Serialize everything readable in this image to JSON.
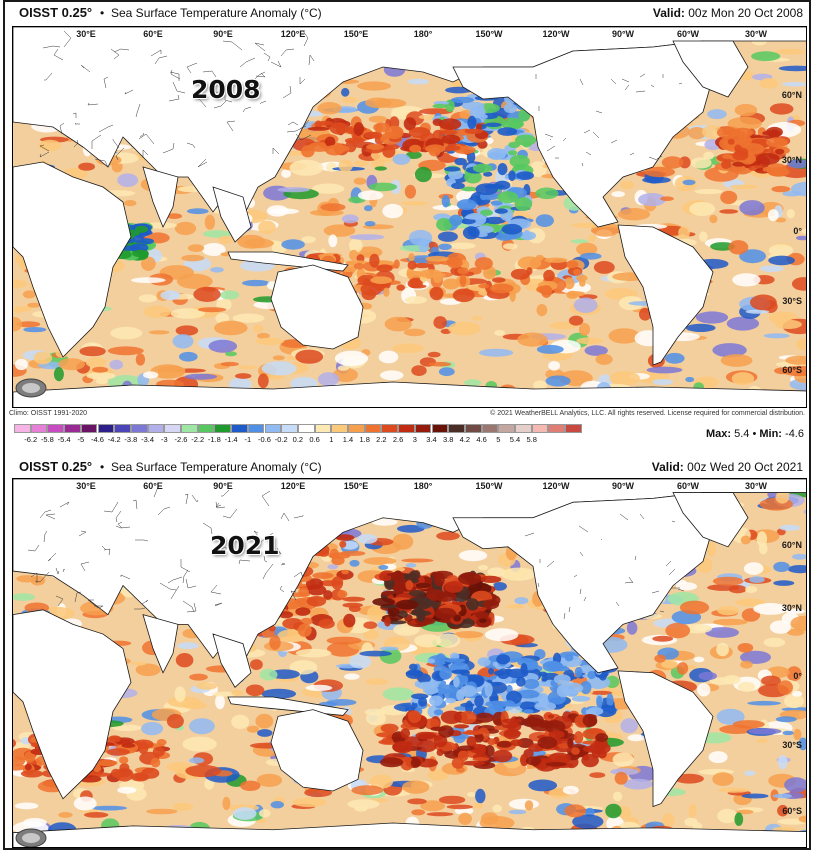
{
  "colors": {
    "scale": [
      "#f6b3e6",
      "#e680d6",
      "#c74cbf",
      "#9a2a93",
      "#6b1466",
      "#2d1f8a",
      "#4b45b8",
      "#7b78d6",
      "#b2b0ea",
      "#d8d6f5",
      "#9ee6a3",
      "#56c85f",
      "#1f9a2c",
      "#1e5bc8",
      "#4f8fe6",
      "#8fbaf2",
      "#c6dcf9",
      "#ffffff",
      "#fde9b3",
      "#fbc97a",
      "#f6a04d",
      "#ee7330",
      "#dd4a1e",
      "#c12b12",
      "#951c0c",
      "#6a1208",
      "#4a2d26",
      "#6f4b44",
      "#9a7770",
      "#c4a7a1",
      "#e6cfca",
      "#f5b9b2",
      "#e07d74",
      "#c9483f"
    ],
    "land": "#ffffff",
    "coast": "#1a1a1a"
  },
  "maps": [
    {
      "product": "OISST 0.25°",
      "bullet": "•",
      "title": "Sea Surface Temperature Anomaly (°C)",
      "valid_label": "Valid:",
      "valid_value": "00z Mon 20 Oct 2008",
      "year": "2008",
      "logo_text": "WeatherBELL",
      "climo": "Climo: OISST 1991-2020",
      "copyright": "© 2021 WeatherBELL Analytics, LLC. All rights reserved. License required for commercial distribution.",
      "max_label": "Max:",
      "max": "5.4",
      "min_label": "Min:",
      "min": "-4.6"
    },
    {
      "product": "OISST 0.25°",
      "bullet": "•",
      "title": "Sea Surface Temperature Anomaly (°C)",
      "valid_label": "Valid:",
      "valid_value": "00z Wed 20 Oct 2021",
      "year": "2021",
      "logo_text": "WeatherBELL"
    }
  ],
  "lon_labels": [
    "30°E",
    "60°E",
    "90°E",
    "120°E",
    "150°E",
    "180°",
    "150°W",
    "120°W",
    "90°W",
    "60°W",
    "30°W"
  ],
  "lat_labels": [
    "60°N",
    "30°N",
    "0°",
    "30°S",
    "60°S"
  ],
  "legend_ticks": [
    "-6.2",
    "-5.8",
    "-5.4",
    "-5",
    "-4.6",
    "-4.2",
    "-3.8",
    "-3.4",
    "-3",
    "-2.6",
    "-2.2",
    "-1.8",
    "-1.4",
    "-1",
    "-0.6",
    "-0.2",
    "0.2",
    "0.6",
    "1",
    "1.4",
    "1.8",
    "2.2",
    "2.6",
    "3",
    "3.4",
    "3.8",
    "4.2",
    "4.6",
    "5",
    "5.4",
    "5.8"
  ]
}
